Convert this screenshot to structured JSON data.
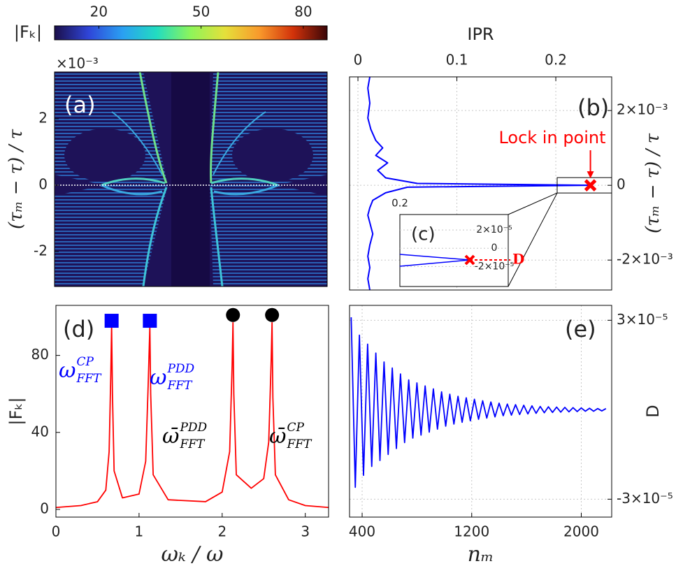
{
  "chart_data": [
    {
      "type": "colorbar",
      "label": "|Fₖ|",
      "clim": [
        7,
        87
      ],
      "ticks": [
        20,
        50,
        80
      ],
      "colors": [
        "#1b0f4a",
        "#2f45d8",
        "#2aa0f2",
        "#22dcc0",
        "#8ef55a",
        "#e5e03a",
        "#f99a2c",
        "#d2320a",
        "#3a0608"
      ]
    },
    {
      "type": "heatmap",
      "panel_label": "(a)",
      "ylabel": "(τₘ − τ) / τ",
      "y_multiplier": "×10⁻³",
      "ylim": [
        -0.00305,
        0.00341
      ],
      "yticks": [
        {
          "value": 0.002,
          "label": "2"
        },
        0,
        {
          "value": -0.002,
          "label": "-2"
        }
      ]
    },
    {
      "type": "line",
      "orientation": "vertical",
      "panel_label": "(b)",
      "xlabel": "IPR",
      "x_side": "top",
      "xlim": [
        -0.0085,
        0.2565
      ],
      "xticks": [
        0,
        0.1,
        0.2
      ],
      "ylabel": "(τₘ − τ) / τ",
      "y_side": "right",
      "ylim": [
        -0.0028,
        0.0029
      ],
      "yticks": [
        {
          "value": 0.002,
          "label": "2×10⁻³"
        },
        0,
        {
          "value": -0.002,
          "label": "-2×10⁻³"
        }
      ],
      "grid": true,
      "color": "#0000ff",
      "y": [
        0.0029,
        0.0026,
        0.0022,
        0.0018,
        0.0015,
        0.0012,
        0.001,
        0.0008,
        0.0006,
        0.0004,
        0.0002,
        5e-05,
        0,
        -5e-05,
        -0.0002,
        -0.0004,
        -0.0006,
        -0.0008,
        -0.001,
        -0.0013,
        -0.0016,
        -0.0019,
        -0.0022,
        -0.0025,
        -0.0028
      ],
      "values": [
        0.012,
        0.01,
        0.012,
        0.01,
        0.013,
        0.018,
        0.025,
        0.018,
        0.03,
        0.02,
        0.028,
        0.06,
        0.235,
        0.05,
        0.028,
        0.015,
        0.012,
        0.01,
        0.012,
        0.015,
        0.012,
        0.01,
        0.012,
        0.01,
        0.012
      ],
      "annotation": "Lock in point",
      "lock_point": {
        "x": 0.235,
        "y": 0
      },
      "marker_color": "#ff0000",
      "inset": {
        "panel_label": "(c)",
        "xticks": [
          0.2
        ],
        "ylabel": "D",
        "ylim": [
          -4.2e-05,
          3.7e-05
        ],
        "yticks": [
          {
            "value": 2e-05,
            "label": "2×10⁻⁵"
          },
          0,
          {
            "value": -2e-05,
            "label": "-2×10⁻⁵"
          }
        ]
      }
    },
    {
      "type": "line",
      "panel_label": "(d)",
      "xlabel": "ωₖ / ω",
      "ylabel": "|Fₖ|",
      "xlim": [
        0,
        3.28
      ],
      "xticks": [
        0,
        1,
        2,
        3
      ],
      "ylim": [
        -4,
        106
      ],
      "yticks": [
        0,
        40,
        80
      ],
      "color": "#ff0000",
      "x": [
        0,
        0.3,
        0.5,
        0.6,
        0.64,
        0.66,
        0.67,
        0.68,
        0.7,
        0.8,
        1.0,
        1.08,
        1.11,
        1.13,
        1.14,
        1.17,
        1.35,
        1.8,
        2.0,
        2.09,
        2.12,
        2.13,
        2.14,
        2.17,
        2.35,
        2.5,
        2.56,
        2.59,
        2.6,
        2.61,
        2.64,
        2.8,
        3.0,
        3.28
      ],
      "values": [
        1,
        2,
        4,
        10,
        30,
        70,
        96,
        60,
        20,
        6,
        8,
        25,
        65,
        95,
        60,
        18,
        5,
        4,
        9,
        30,
        75,
        97,
        60,
        18,
        11,
        16,
        35,
        78,
        97,
        58,
        18,
        5,
        2,
        1
      ],
      "markers": [
        {
          "x": 0.67,
          "y": 98,
          "shape": "square",
          "color": "#0000ff"
        },
        {
          "x": 1.13,
          "y": 98,
          "shape": "square",
          "color": "#0000ff"
        },
        {
          "x": 2.13,
          "y": 101,
          "shape": "circle",
          "color": "#000000"
        },
        {
          "x": 2.6,
          "y": 101,
          "shape": "circle",
          "color": "#000000"
        }
      ],
      "annotations": [
        {
          "base": "ω",
          "sup": "CP",
          "sub": "FFT",
          "color": "#0000ff"
        },
        {
          "base": "ω",
          "sup": "PDD",
          "sub": "FFT",
          "color": "#0000ff"
        },
        {
          "base": "ω̄",
          "sup": "PDD",
          "sub": "FFT",
          "color": "#000000"
        },
        {
          "base": "ω̄",
          "sup": "CP",
          "sub": "FFT",
          "color": "#000000"
        }
      ]
    },
    {
      "type": "line",
      "panel_label": "(e)",
      "xlabel": "nₘ",
      "ylabel": "D",
      "y_side": "right",
      "xlim": [
        308,
        2222
      ],
      "xticks": [
        400,
        1200,
        2000
      ],
      "ylim": [
        -3.6e-05,
        3.5e-05
      ],
      "yticks": [
        {
          "value": 3e-05,
          "label": "3×10⁻⁵"
        },
        {
          "value": -3e-05,
          "label": "-3×10⁻⁵"
        }
      ],
      "grid": true,
      "color": "#0000ff",
      "x": [
        320,
        350,
        380,
        410,
        440,
        470,
        500,
        530,
        560,
        590,
        620,
        650,
        680,
        710,
        740,
        770,
        800,
        830,
        860,
        890,
        920,
        950,
        980,
        1010,
        1040,
        1070,
        1100,
        1130,
        1160,
        1190,
        1220,
        1250,
        1280,
        1310,
        1340,
        1370,
        1400,
        1430,
        1460,
        1490,
        1520,
        1550,
        1580,
        1610,
        1640,
        1670,
        1700,
        1730,
        1760,
        1790,
        1820,
        1850,
        1880,
        1910,
        1940,
        1970,
        2000,
        2030,
        2060,
        2090,
        2120,
        2150,
        2180
      ],
      "values": [
        3.1e-05,
        -2.6e-05,
        2.5e-05,
        -2.2e-05,
        2.2e-05,
        -1.9e-05,
        1.9e-05,
        -1.7e-05,
        1.6e-05,
        -1.5e-05,
        1.4e-05,
        -1.3e-05,
        1.2e-05,
        -1.1e-05,
        1e-05,
        -9.5e-06,
        9e-06,
        -8.5e-06,
        8e-06,
        -7.5e-06,
        7e-06,
        -6.5e-06,
        6e-06,
        -5.5e-06,
        5.2e-06,
        -4.8e-06,
        4.5e-06,
        -4.2e-06,
        4e-06,
        -3.7e-06,
        3.5e-06,
        -3.2e-06,
        3e-06,
        -2.8e-06,
        2.6e-06,
        -2.4e-06,
        2.2e-06,
        -2e-06,
        1.9e-06,
        -1.8e-06,
        1.7e-06,
        -1.6e-06,
        1.5e-06,
        -1.4e-06,
        1.3e-06,
        -1.2e-06,
        1.1e-06,
        -1e-06,
        1e-06,
        -9e-07,
        9e-07,
        -8e-07,
        8e-07,
        -7e-07,
        7e-07,
        -6e-07,
        6e-07,
        -5e-07,
        5e-07,
        -5e-07,
        4e-07,
        -4e-07,
        4e-07
      ]
    }
  ]
}
